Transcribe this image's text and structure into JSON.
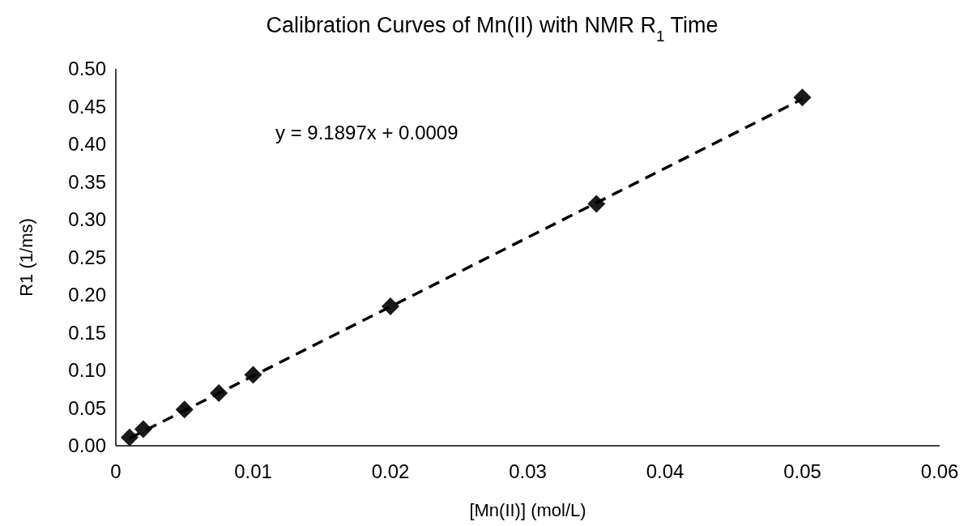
{
  "chart_data": {
    "type": "scatter",
    "title": "Calibration Curves of Mn(II) with NMR R$_{1}$ Time",
    "xlabel": "[Mn(II)] (mol/L)",
    "ylabel": "R1 (1/ms)",
    "annotations": [
      "y = 9.1897x + 0.0009"
    ],
    "xlim": [
      0,
      0.06
    ],
    "xticks": [
      0,
      0.01,
      0.02,
      0.03,
      0.04,
      0.05,
      0.06
    ],
    "ylim": [
      0,
      0.5
    ],
    "yticks": [
      {
        "value": 0,
        "label": "0.00"
      },
      {
        "value": 0.05,
        "label": "0.05"
      },
      {
        "value": 0.1,
        "label": "0.10"
      },
      {
        "value": 0.15,
        "label": "0.15"
      },
      {
        "value": 0.2,
        "label": "0.20"
      },
      {
        "value": 0.25,
        "label": "0.25"
      },
      {
        "value": 0.3,
        "label": "0.30"
      },
      {
        "value": 0.35,
        "label": "0.35"
      },
      {
        "value": 0.4,
        "label": "0.40"
      },
      {
        "value": 0.45,
        "label": "0.45"
      },
      {
        "value": 0.5,
        "label": "0.50"
      }
    ],
    "grid": false,
    "series": [
      {
        "color": "#1a1a1a",
        "marker": "diamond",
        "x": [
          0.001,
          0.002,
          0.005,
          0.0075,
          0.01,
          0.02,
          0.035,
          0.05
        ],
        "values": [
          0.011,
          0.022,
          0.048,
          0.07,
          0.094,
          0.185,
          0.321,
          0.462
        ]
      },
      {
        "type": "line",
        "color": "#000000",
        "line_style": "dashed",
        "marker": "none",
        "x": [
          0.001,
          0.05
        ],
        "values": [
          0.01,
          0.46
        ]
      }
    ]
  }
}
